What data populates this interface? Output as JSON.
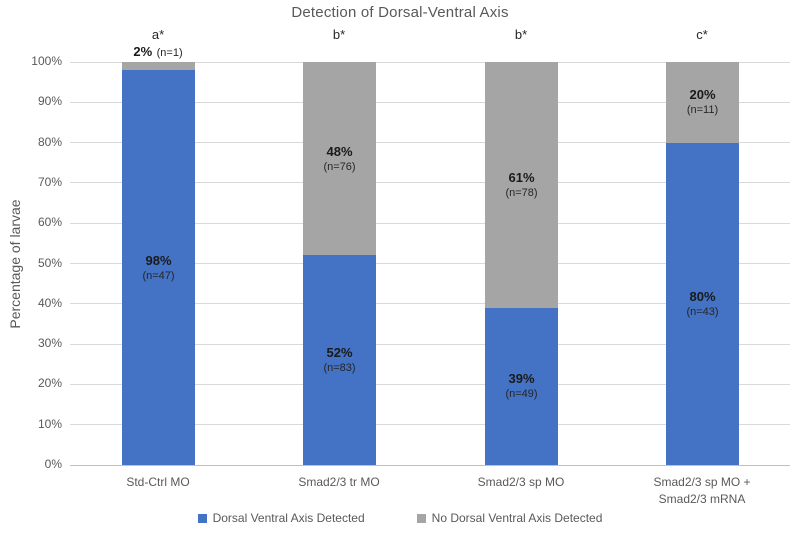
{
  "title": "Detection of Dorsal-Ventral Axis",
  "y_axis_title": "Percentage of larvae",
  "chart_data": {
    "type": "bar",
    "subtype": "stacked-percentage",
    "title": "Detection of Dorsal-Ventral Axis",
    "xlabel": "",
    "ylabel": "Percentage of larvae",
    "ylim": [
      0,
      100
    ],
    "y_ticks": [
      "0%",
      "10%",
      "20%",
      "30%",
      "40%",
      "50%",
      "60%",
      "70%",
      "80%",
      "90%",
      "100%"
    ],
    "grid": true,
    "legend_position": "bottom",
    "categories": [
      "Std-Ctrl MO",
      "Smad2/3 tr MO",
      "Smad2/3 sp MO",
      "Smad2/3 sp MO +\nSmad2/3 mRNA"
    ],
    "significance_labels": [
      "a*",
      "b*",
      "b*",
      "c*"
    ],
    "series": [
      {
        "name": "Dorsal Ventral Axis Detected",
        "color": "#4472C4",
        "values": [
          98,
          52,
          39,
          80
        ],
        "n": [
          47,
          83,
          49,
          43
        ]
      },
      {
        "name": "No Dorsal Ventral Axis Detected",
        "color": "#A5A5A5",
        "values": [
          2,
          48,
          61,
          20
        ],
        "n": [
          1,
          76,
          78,
          11
        ]
      }
    ]
  },
  "display": {
    "bars": [
      {
        "sig": "a*",
        "blue_pct": "98%",
        "blue_n": "(n=47)",
        "gray_pct": "2%",
        "gray_n": "(n=1)"
      },
      {
        "sig": "b*",
        "blue_pct": "52%",
        "blue_n": "(n=83)",
        "gray_pct": "48%",
        "gray_n": "(n=76)"
      },
      {
        "sig": "b*",
        "blue_pct": "39%",
        "blue_n": "(n=49)",
        "gray_pct": "61%",
        "gray_n": "(n=78)"
      },
      {
        "sig": "c*",
        "blue_pct": "80%",
        "blue_n": "(n=43)",
        "gray_pct": "20%",
        "gray_n": "(n=11)"
      }
    ]
  },
  "colors": {
    "detected": "#4472C4",
    "not_detected": "#A5A5A5",
    "gridline": "#D9D9D9",
    "axis_line": "#BFBFBF",
    "axis_text": "#595959",
    "data_label_text": "#1A1A1A"
  }
}
